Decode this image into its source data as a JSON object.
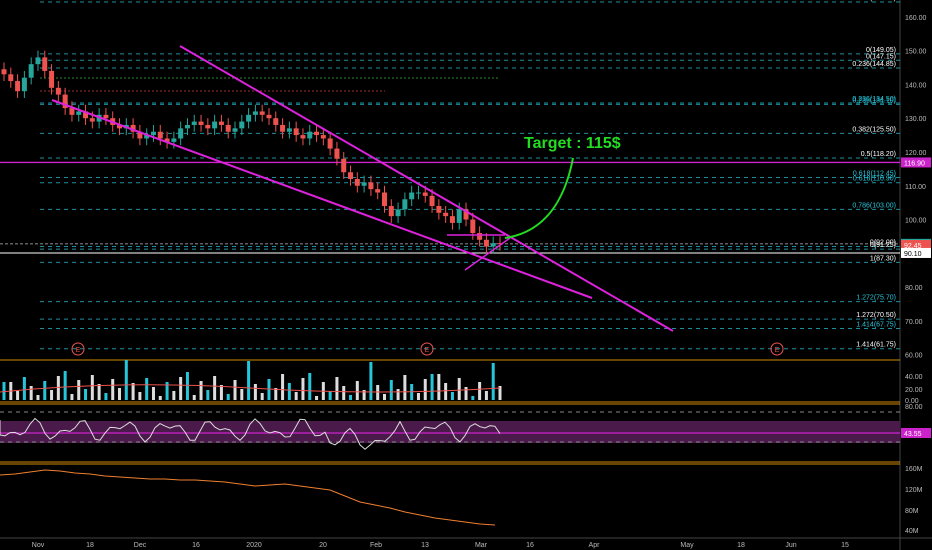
{
  "chart_data": {
    "type": "candlestick",
    "annotation": {
      "text": "Target : 115$",
      "color": "#22dd22"
    },
    "x_tick_labels": [
      "Nov",
      "18",
      "Dec",
      "16",
      "2020",
      "20",
      "Feb",
      "13",
      "Mar",
      "16",
      "Apr",
      "May",
      "18",
      "Jun",
      "15"
    ],
    "price_axis": {
      "ylim": [
        59,
        165
      ],
      "ticks": [
        "160.00",
        "150.00",
        "140.00",
        "130.00",
        "120.00",
        "110.00",
        "100.00",
        "90.00",
        "80.00",
        "70.00",
        "60.00"
      ]
    },
    "fib_levels": [
      {
        "label": "0.5(164.40)",
        "value": 164.4
      },
      {
        "label": "0(149.05)",
        "value": 149.05
      },
      {
        "label": "0(147.15)",
        "value": 147.15
      },
      {
        "label": "0.236(144.85)",
        "value": 144.85
      },
      {
        "label": "0.236(134.10)",
        "value": 134.1
      },
      {
        "label": "0.236(134.50)",
        "value": 134.5
      },
      {
        "label": "0.382(125.50)",
        "value": 125.5
      },
      {
        "label": "0.5(118.20)",
        "value": 118.2
      },
      {
        "label": "0.618(112.45)",
        "value": 112.45
      },
      {
        "label": "0.618(110.90)",
        "value": 110.9
      },
      {
        "label": "0.786(103.00)",
        "value": 103.0
      },
      {
        "label": "0(92.00)",
        "value": 92.0
      },
      {
        "label": "0(91.25)",
        "value": 91.25
      },
      {
        "label": "1(87.30)",
        "value": 87.3
      },
      {
        "label": "1.272(75.70)",
        "value": 75.7
      },
      {
        "label": "1.272(70.50)",
        "value": 70.5
      },
      {
        "label": "1.414(67.75)",
        "value": 67.75
      },
      {
        "label": "1.414(61.75)",
        "value": 61.75
      }
    ],
    "price_badges": [
      {
        "text": "116.90",
        "value": 116.9,
        "bg": "#cc22cc",
        "fg": "#ffffff"
      },
      {
        "text": "92.80",
        "value": 92.8,
        "bg": "#26a69a",
        "fg": "#ffffff"
      },
      {
        "text": "92.45",
        "value": 92.45,
        "bg": "#ef5350",
        "fg": "#ffffff"
      },
      {
        "text": "90.10",
        "value": 90.1,
        "bg": "#ffffff",
        "fg": "#000000"
      }
    ],
    "earnings_markers": [
      "E",
      "E",
      "E"
    ],
    "volume_axis": {
      "ticks": [
        "40.00",
        "20.00",
        "0.00"
      ]
    },
    "rsi_axis": {
      "ticks": [
        "80.00"
      ],
      "current": "43.55"
    },
    "obv_axis": {
      "ticks": [
        "160M",
        "120M",
        "80M",
        "40M"
      ]
    },
    "close_series": [
      143,
      141,
      138,
      142,
      146,
      148,
      144,
      139,
      137,
      133,
      131,
      132,
      130,
      129,
      131,
      130,
      128,
      127,
      128,
      126,
      124,
      125,
      126,
      124,
      123,
      124,
      127,
      128,
      129,
      128,
      127,
      129,
      128,
      126,
      127,
      129,
      131,
      132,
      131,
      130,
      128,
      126,
      127,
      125,
      124,
      126,
      125,
      124,
      121,
      118,
      114,
      112,
      110,
      111,
      109,
      108,
      104,
      101,
      103,
      106,
      108,
      108,
      107,
      104,
      102,
      101,
      99,
      103,
      100,
      96,
      94,
      92,
      93,
      92.8
    ]
  }
}
